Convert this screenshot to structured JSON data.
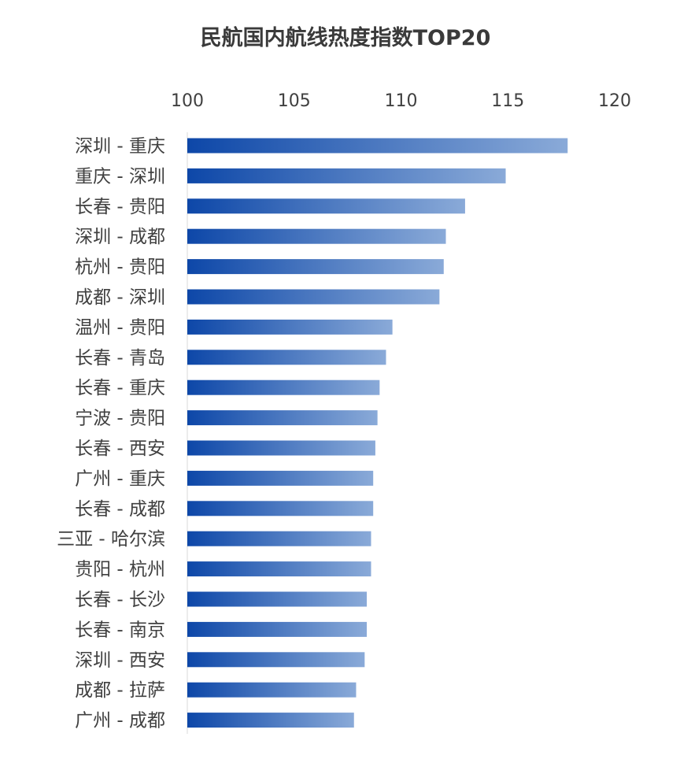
{
  "chart_data": {
    "type": "bar",
    "orientation": "horizontal",
    "title": "民航国内航线热度指数TOP20",
    "xlabel": "",
    "ylabel": "",
    "xlim": [
      100,
      120
    ],
    "xticks": [
      100,
      105,
      110,
      115,
      120
    ],
    "x_axis_position": "top",
    "grid": false,
    "legend": "none",
    "bar_gradient": [
      "#0d47a8",
      "#8aaad8"
    ],
    "categories": [
      "深圳 - 重庆",
      "重庆 - 深圳",
      "长春 - 贵阳",
      "深圳 - 成都",
      "杭州 - 贵阳",
      "成都 - 深圳",
      "温州 - 贵阳",
      "长春 - 青岛",
      "长春 - 重庆",
      "宁波 - 贵阳",
      "长春 - 西安",
      "广州 - 重庆",
      "长春 - 成都",
      "三亚 - 哈尔滨",
      "贵阳 - 杭州",
      "长春 - 长沙",
      "长春 - 南京",
      "深圳 - 西安",
      "成都 - 拉萨",
      "广州 - 成都"
    ],
    "values": [
      117.8,
      114.9,
      113.0,
      112.1,
      112.0,
      111.8,
      109.6,
      109.3,
      109.0,
      108.9,
      108.8,
      108.7,
      108.7,
      108.6,
      108.6,
      108.4,
      108.4,
      108.3,
      107.9,
      107.8
    ]
  }
}
